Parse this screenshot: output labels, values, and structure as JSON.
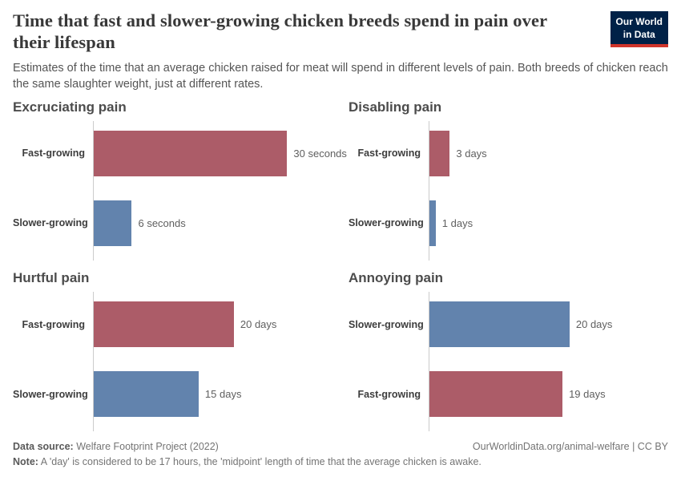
{
  "header": {
    "title": "Time that fast and slower-growing chicken breeds spend in pain over their lifespan",
    "subtitle": "Estimates of the time that an average chicken raised for meat will spend in different levels of pain. Both breeds of chicken reach the same slaughter weight, just at different rates.",
    "logo": {
      "line1": "Our World",
      "line2": "in Data"
    }
  },
  "chart_data": {
    "type": "bar",
    "orientation": "horizontal",
    "grid": false,
    "legend": "none",
    "colors": {
      "fast": "#ac5c68",
      "slower": "#6283ad"
    },
    "panels": [
      {
        "title": "Excruciating pain",
        "unit": "seconds",
        "xlim": [
          0,
          37
        ],
        "bars": [
          {
            "label": "Fast-growing",
            "value": 30,
            "value_label": "30 seconds",
            "series": "fast"
          },
          {
            "label": "Slower-growing",
            "value": 6,
            "value_label": "6 seconds",
            "series": "slower"
          }
        ]
      },
      {
        "title": "Disabling pain",
        "unit": "days",
        "xlim": [
          0,
          34
        ],
        "bars": [
          {
            "label": "Fast-growing",
            "value": 3,
            "value_label": "3 days",
            "series": "fast"
          },
          {
            "label": "Slower-growing",
            "value": 1,
            "value_label": "1 days",
            "series": "slower"
          }
        ]
      },
      {
        "title": "Hurtful pain",
        "unit": "days",
        "xlim": [
          0,
          34
        ],
        "bars": [
          {
            "label": "Fast-growing",
            "value": 20,
            "value_label": "20 days",
            "series": "fast"
          },
          {
            "label": "Slower-growing",
            "value": 15,
            "value_label": "15 days",
            "series": "slower"
          }
        ]
      },
      {
        "title": "Annoying pain",
        "unit": "days",
        "xlim": [
          0,
          34
        ],
        "bars": [
          {
            "label": "Slower-growing",
            "value": 20,
            "value_label": "20 days",
            "series": "slower"
          },
          {
            "label": "Fast-growing",
            "value": 19,
            "value_label": "19 days",
            "series": "fast"
          }
        ]
      }
    ]
  },
  "footer": {
    "datasource_label": "Data source:",
    "datasource_value": " Welfare Footprint Project (2022)",
    "attribution": "OurWorldinData.org/animal-welfare | CC BY",
    "note_label": "Note:",
    "note_value": " A 'day' is considered to be 17 hours, the 'midpoint' length of time that the average chicken is awake."
  }
}
